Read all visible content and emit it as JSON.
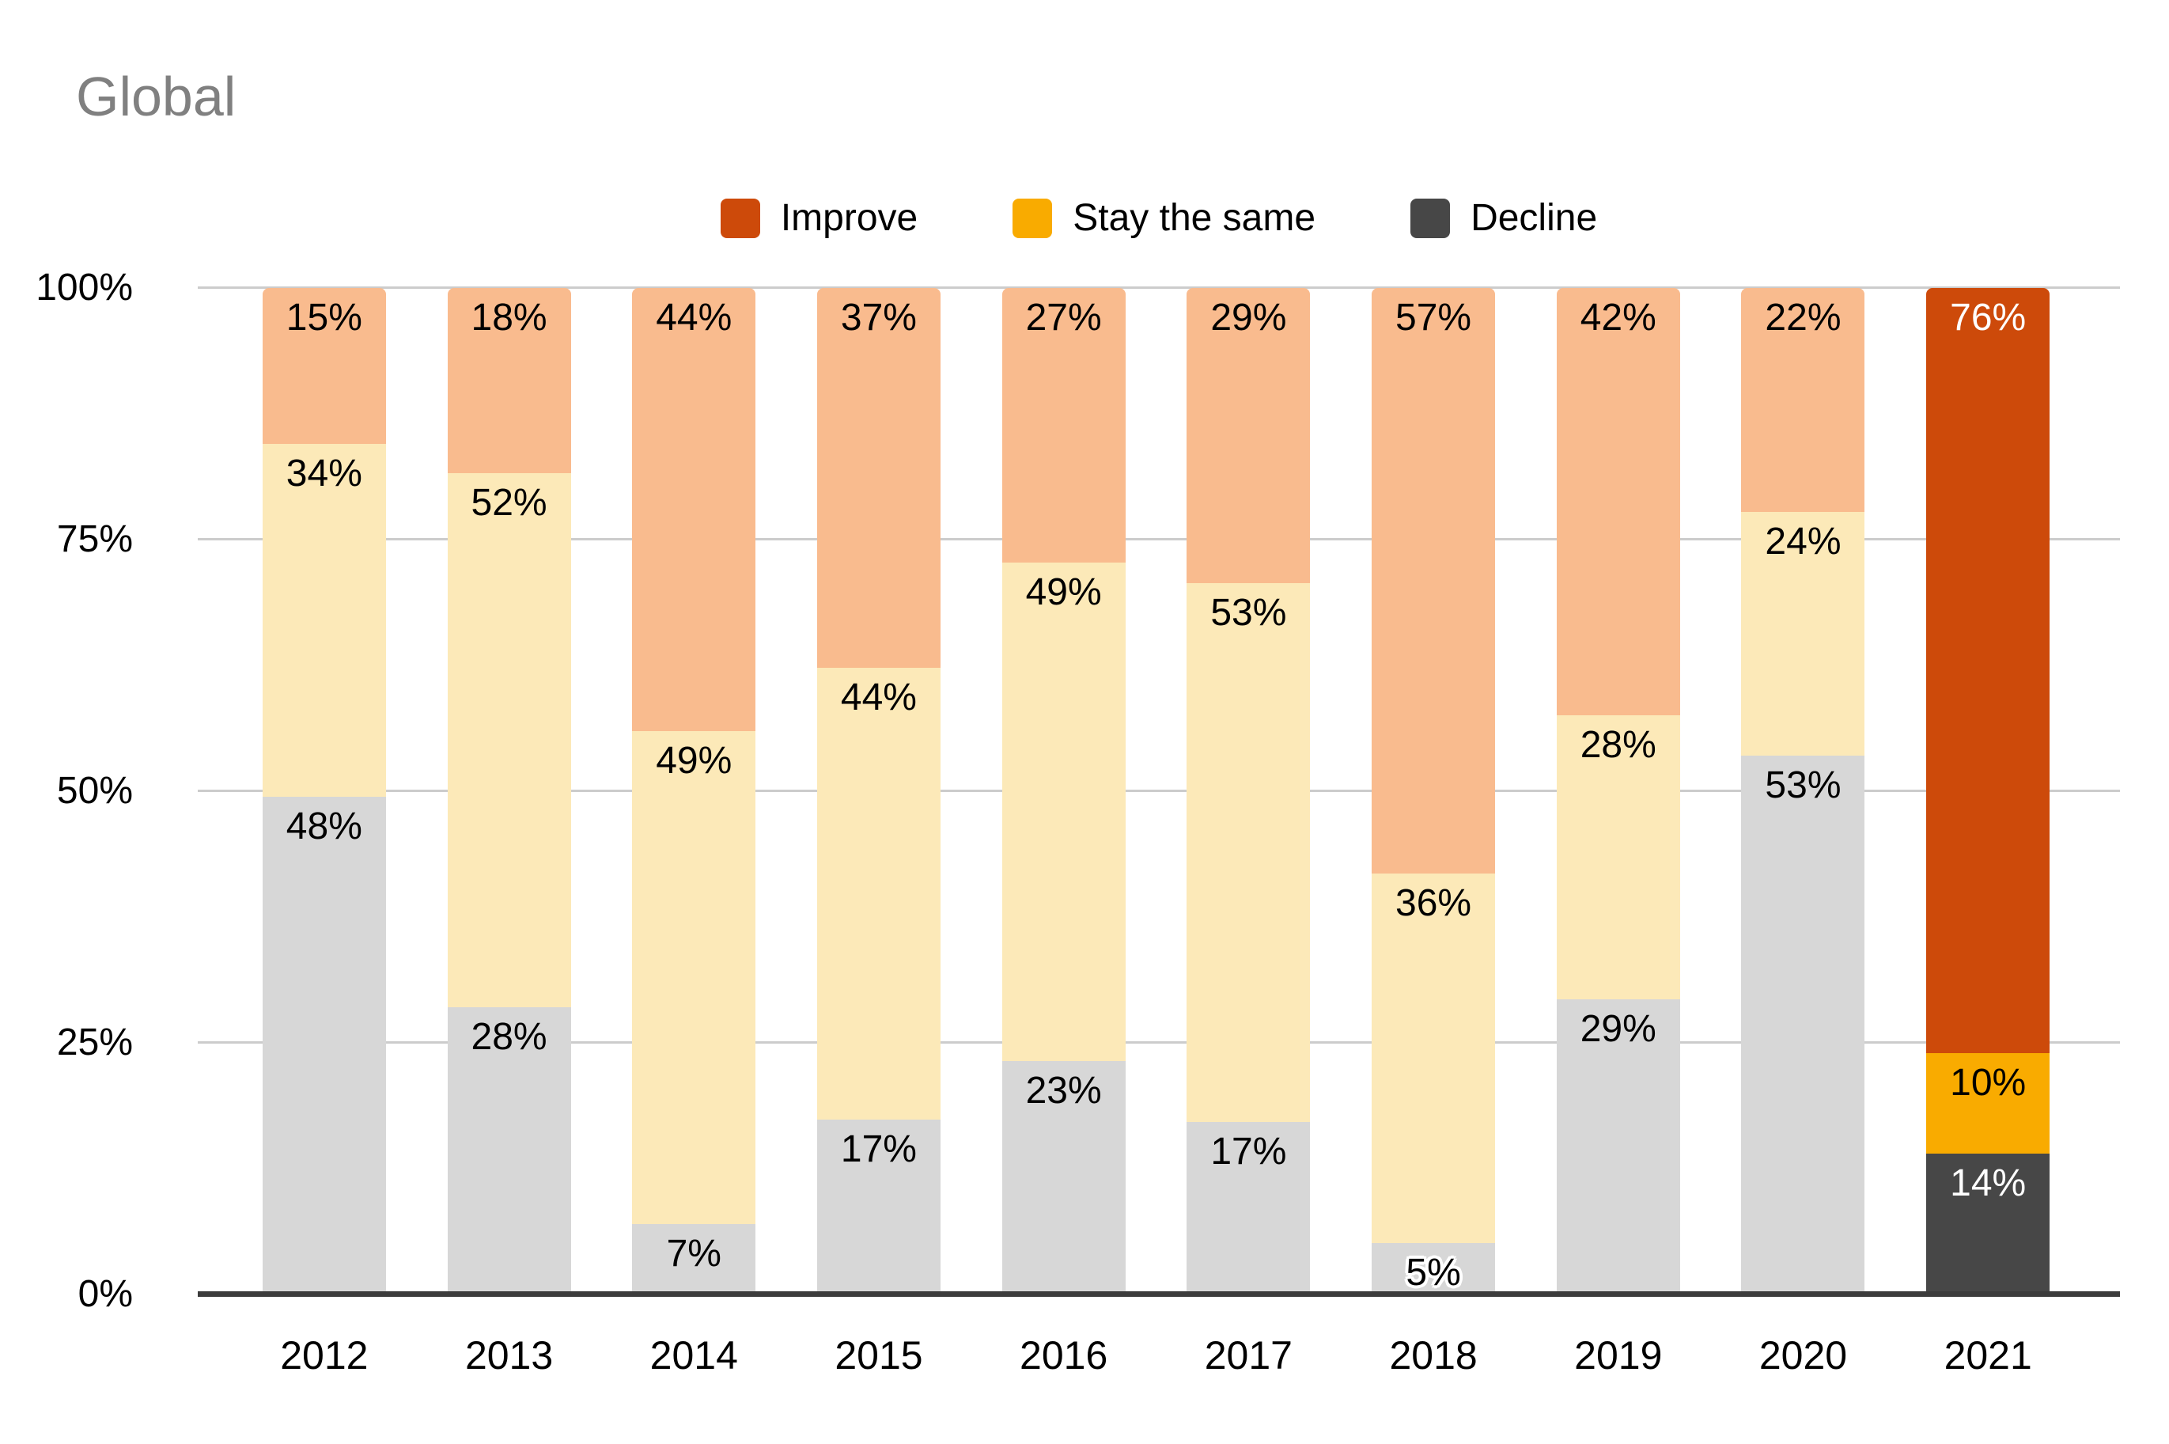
{
  "title": "Global",
  "legend": [
    {
      "label": "Improve",
      "color": "#cd4a0a"
    },
    {
      "label": "Stay the same",
      "color": "#f9ab00"
    },
    {
      "label": "Decline",
      "color": "#474747"
    }
  ],
  "chart_data": {
    "type": "bar",
    "stacked": true,
    "percent_stacked": true,
    "title": "Global",
    "categories": [
      "2012",
      "2013",
      "2014",
      "2015",
      "2016",
      "2017",
      "2018",
      "2019",
      "2020",
      "2021"
    ],
    "series": [
      {
        "name": "Decline",
        "values": [
          48,
          28,
          7,
          17,
          23,
          17,
          5,
          29,
          53,
          14
        ],
        "color": "#474747",
        "muted_color": "#d7d7d7",
        "label_color": "#ffffff",
        "muted_label_color": "#000000"
      },
      {
        "name": "Stay the same",
        "values": [
          34,
          52,
          49,
          44,
          49,
          53,
          36,
          28,
          24,
          10
        ],
        "color": "#f9ab00",
        "muted_color": "#fce9b8",
        "label_color": "#000000",
        "muted_label_color": "#000000"
      },
      {
        "name": "Improve",
        "values": [
          15,
          18,
          44,
          37,
          27,
          29,
          57,
          42,
          22,
          76
        ],
        "color": "#cd4a0a",
        "muted_color": "#f9bb8e",
        "label_color": "#ffffff",
        "muted_label_color": "#000000"
      }
    ],
    "stack_order_bottom_to_top": [
      "Decline",
      "Stay the same",
      "Improve"
    ],
    "highlight_category": "2021",
    "value_suffix": "%",
    "yticks": [
      {
        "label": "0%",
        "value": 0
      },
      {
        "label": "25%",
        "value": 25
      },
      {
        "label": "50%",
        "value": 50
      },
      {
        "label": "75%",
        "value": 75
      },
      {
        "label": "100%",
        "value": 100
      }
    ],
    "ylim": [
      0,
      100
    ],
    "grid": true,
    "legend_position": "top",
    "colors": {
      "gridline": "#cccccc",
      "axis_line": "#3c3c3c",
      "title_text": "#808080",
      "label_text": "#000000"
    }
  }
}
